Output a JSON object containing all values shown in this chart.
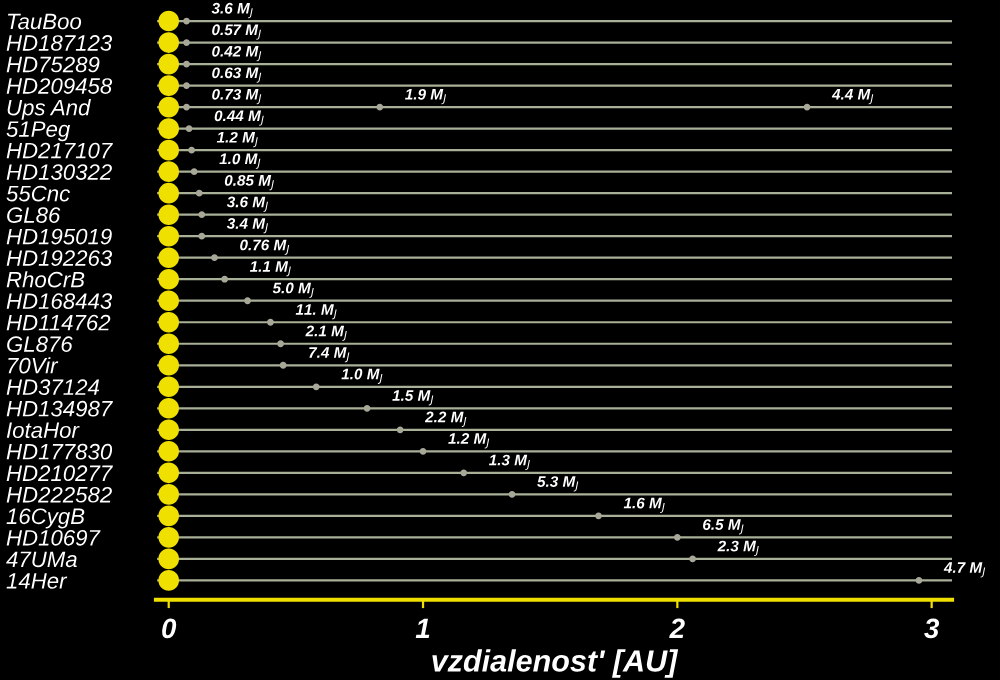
{
  "chart_data": {
    "type": "scatter",
    "orientation": "horizontal",
    "xlabel": "vzdialenost' [AU]",
    "categories": [
      "TauBoo",
      "HD187123",
      "HD75289",
      "HD209458",
      "Ups And",
      "51Peg",
      "HD217107",
      "HD130322",
      "55Cnc",
      "GL86",
      "HD195019",
      "HD192263",
      "RhoCrB",
      "HD168443",
      "HD114762",
      "GL876",
      "70Vir",
      "HD37124",
      "HD134987",
      "IotaHor",
      "HD177830",
      "HD210277",
      "HD222582",
      "16CygB",
      "HD10697",
      "47UMa",
      "14Her"
    ],
    "xlim": [
      -0.05,
      3.08
    ],
    "xticks": [
      0,
      1,
      2,
      3
    ],
    "grid": "y",
    "marker": "circle",
    "series": [
      {
        "color": "#f0e000",
        "values": [
          0,
          0,
          0,
          0,
          0,
          0,
          0,
          0,
          0,
          0,
          0,
          0,
          0,
          0,
          0,
          0,
          0,
          0,
          0,
          0,
          0,
          0,
          0,
          0,
          0,
          0,
          0
        ]
      },
      {
        "color": "#a8a898",
        "values": [
          0.07,
          0.07,
          0.07,
          0.07,
          0.07,
          0.08,
          0.09,
          0.1,
          0.12,
          0.13,
          0.13,
          0.18,
          0.22,
          0.31,
          0.4,
          0.44,
          0.45,
          0.58,
          0.78,
          0.91,
          1.0,
          1.16,
          1.35,
          1.69,
          2.0,
          2.06,
          2.95
        ]
      },
      {
        "color": "#a8a898",
        "values": [
          null,
          null,
          null,
          null,
          0.83,
          null,
          null,
          null,
          null,
          null,
          null,
          null,
          null,
          null,
          null,
          null,
          null,
          null,
          null,
          null,
          null,
          null,
          null,
          null,
          null,
          null,
          null
        ]
      },
      {
        "color": "#a8a898",
        "values": [
          null,
          null,
          null,
          null,
          2.51,
          null,
          null,
          null,
          null,
          null,
          null,
          null,
          null,
          null,
          null,
          null,
          null,
          null,
          null,
          null,
          null,
          null,
          null,
          null,
          null,
          null,
          null
        ]
      }
    ],
    "annotations": [
      {
        "text": "3.6 M$_{J}$",
        "x": 0.07,
        "y": "TauBoo"
      },
      {
        "text": "0.57 M$_{J}$",
        "x": 0.07,
        "y": "HD187123"
      },
      {
        "text": "0.42 M$_{J}$",
        "x": 0.07,
        "y": "HD75289"
      },
      {
        "text": "0.63 M$_{J}$",
        "x": 0.07,
        "y": "HD209458"
      },
      {
        "text": "0.73 M$_{J}$",
        "x": 0.07,
        "y": "Ups And"
      },
      {
        "text": "1.9 M$_{J}$",
        "x": 0.83,
        "y": "Ups And"
      },
      {
        "text": "4.4 M$_{J}$",
        "x": 2.51,
        "y": "Ups And"
      },
      {
        "text": "0.44 M$_{J}$",
        "x": 0.08,
        "y": "51Peg"
      },
      {
        "text": "1.2 M$_{J}$",
        "x": 0.09,
        "y": "HD217107"
      },
      {
        "text": "1.0 M$_{J}$",
        "x": 0.1,
        "y": "HD130322"
      },
      {
        "text": "0.85 M$_{J}$",
        "x": 0.12,
        "y": "55Cnc"
      },
      {
        "text": "3.6 M$_{J}$",
        "x": 0.13,
        "y": "GL86"
      },
      {
        "text": "3.4 M$_{J}$",
        "x": 0.13,
        "y": "HD195019"
      },
      {
        "text": "0.76 M$_{J}$",
        "x": 0.18,
        "y": "HD192263"
      },
      {
        "text": "1.1 M$_{J}$",
        "x": 0.22,
        "y": "RhoCrB"
      },
      {
        "text": "5.0 M$_{J}$",
        "x": 0.31,
        "y": "HD168443"
      },
      {
        "text": "11. M$_{J}$",
        "x": 0.4,
        "y": "HD114762"
      },
      {
        "text": "2.1 M$_{J}$",
        "x": 0.44,
        "y": "GL876"
      },
      {
        "text": "7.4 M$_{J}$",
        "x": 0.45,
        "y": "70Vir"
      },
      {
        "text": "1.0 M$_{J}$",
        "x": 0.58,
        "y": "HD37124"
      },
      {
        "text": "1.5 M$_{J}$",
        "x": 0.78,
        "y": "HD134987"
      },
      {
        "text": "2.2 M$_{J}$",
        "x": 0.91,
        "y": "IotaHor"
      },
      {
        "text": "1.2 M$_{J}$",
        "x": 1.0,
        "y": "HD177830"
      },
      {
        "text": "1.3 M$_{J}$",
        "x": 1.16,
        "y": "HD210277"
      },
      {
        "text": "5.3 M$_{J}$",
        "x": 1.35,
        "y": "HD222582"
      },
      {
        "text": "1.6 M$_{J}$",
        "x": 1.69,
        "y": "16CygB"
      },
      {
        "text": "6.5 M$_{J}$",
        "x": 2.0,
        "y": "HD10697"
      },
      {
        "text": "2.3 M$_{J}$",
        "x": 2.06,
        "y": "47UMa"
      },
      {
        "text": "4.7 M$_{J}$",
        "x": 2.95,
        "y": "14Her"
      }
    ]
  }
}
